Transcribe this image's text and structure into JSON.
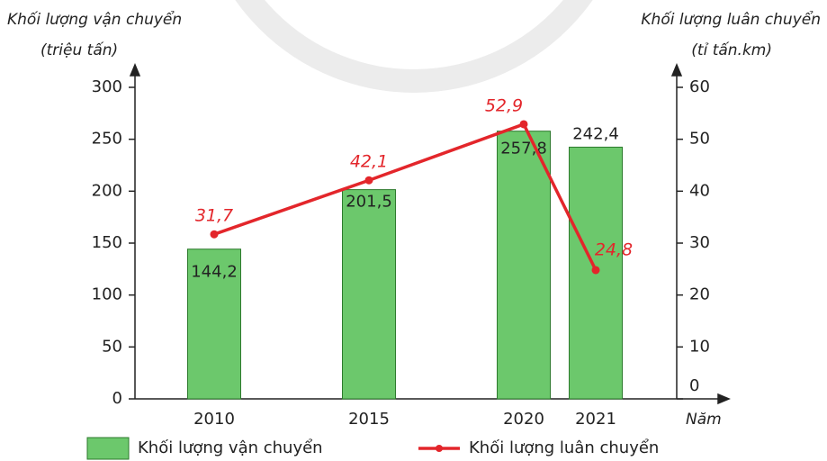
{
  "chart_data": {
    "type": "combo",
    "y_label": "Khối lượng vận chuyển",
    "y_unit": "(triệu tấn)",
    "y2_label": "Khối lượng luân chuyển",
    "y2_unit": "(tỉ tấn.km)",
    "x_label": "Năm",
    "categories": [
      "2010",
      "2015",
      "2020",
      "2021"
    ],
    "series": [
      {
        "name": "Khối lượng vận chuyển",
        "kind": "bar",
        "color": "#6cc86c",
        "values": [
          144.2,
          201.5,
          257.8,
          242.4
        ],
        "value_labels": [
          "144,2",
          "201,5",
          "257,8",
          "242,4"
        ]
      },
      {
        "name": "Khối lượng luân chuyển",
        "kind": "line",
        "axis": "y2",
        "color": "#e3262b",
        "values": [
          31.7,
          42.1,
          52.9,
          24.8
        ],
        "value_labels": [
          "31,7",
          "42,1",
          "52,9",
          "24,8"
        ]
      }
    ],
    "ylim": [
      0,
      300
    ],
    "yticks": [
      0,
      50,
      100,
      150,
      200,
      250,
      300
    ],
    "y2lim": [
      0,
      60
    ],
    "y2ticks": [
      0,
      10,
      20,
      30,
      40,
      50,
      60
    ]
  }
}
